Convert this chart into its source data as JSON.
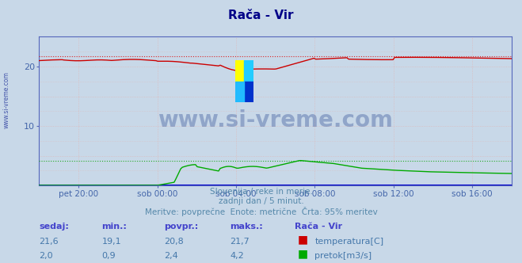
{
  "title": "Rača - Vir",
  "bg_color": "#c8d8e8",
  "plot_bg_color": "#c8d8e8",
  "title_color": "#000088",
  "tick_color": "#4466aa",
  "watermark": "www.si-vreme.com",
  "subtitle1": "Slovenija / reke in morje.",
  "subtitle2": "zadnji dan / 5 minut.",
  "subtitle3": "Meritve: povprečne  Enote: metrične  Črta: 95% meritev",
  "x_ticks_labels": [
    "pet 20:00",
    "sob 00:00",
    "sob 04:00",
    "sob 08:00",
    "sob 12:00",
    "sob 16:00"
  ],
  "x_ticks_pos": [
    0.0833,
    0.25,
    0.4167,
    0.5833,
    0.75,
    0.9167
  ],
  "ylim": [
    0,
    25
  ],
  "y_ticks": [
    10,
    20
  ],
  "temp_color": "#cc0000",
  "flow_color": "#00aa00",
  "level_color": "#0000cc",
  "temp_max_dotted_color": "#dd2222",
  "flow_max_dotted_color": "#22aa22",
  "temp_sedaj": 21.6,
  "temp_min": 19.1,
  "temp_povpr": 20.8,
  "temp_maks": 21.7,
  "flow_sedaj": 2.0,
  "flow_min": 0.9,
  "flow_povpr": 2.4,
  "flow_maks": 4.2,
  "table_header": [
    "sedaj:",
    "min.:",
    "povpr.:",
    "maks.:",
    "Rača - Vir"
  ],
  "table_color": "#4444cc",
  "table_val_color": "#4477aa",
  "subtitle_color": "#5588aa",
  "left_label": "www.si-vreme.com",
  "grid_color": "#ddbbbb",
  "grid_major_color": "#ffffff"
}
